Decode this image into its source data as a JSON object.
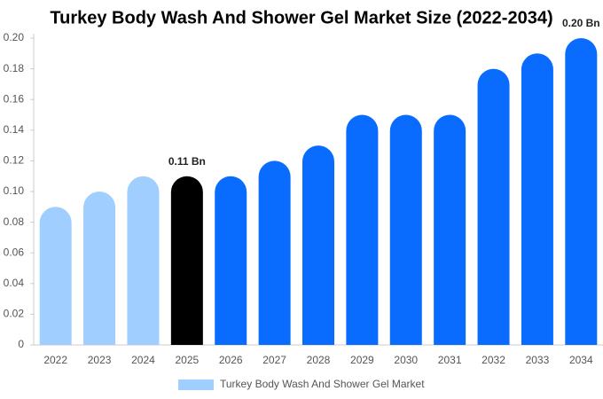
{
  "chart_data": {
    "type": "bar",
    "title": "Turkey Body Wash And Shower Gel Market Size (2022-2034)",
    "categories": [
      "2022",
      "2023",
      "2024",
      "2025",
      "2026",
      "2027",
      "2028",
      "2029",
      "2030",
      "2031",
      "2032",
      "2033",
      "2034"
    ],
    "series": [
      {
        "name": "Turkey Body Wash And Shower Gel Market",
        "color": "#a0cfff",
        "colors": [
          "#a0cfff",
          "#a0cfff",
          "#a0cfff",
          "#000000",
          "#0a6cff",
          "#0a6cff",
          "#0a6cff",
          "#0a6cff",
          "#0a6cff",
          "#0a6cff",
          "#0a6cff",
          "#0a6cff",
          "#0a6cff"
        ],
        "values": [
          0.09,
          0.1,
          0.11,
          0.11,
          0.11,
          0.12,
          0.13,
          0.15,
          0.15,
          0.15,
          0.18,
          0.19,
          0.2
        ],
        "value_labels": [
          null,
          null,
          null,
          "0.11 Bn",
          null,
          null,
          null,
          null,
          null,
          null,
          null,
          null,
          "0.20 Bn"
        ]
      }
    ],
    "ylim": [
      0,
      0.2
    ],
    "yticks": [
      0,
      0.02,
      0.04,
      0.06,
      0.08,
      {
        "value": 0.1,
        "label": "0.10"
      },
      0.12,
      0.14,
      0.16,
      0.18,
      {
        "value": 0.2,
        "label": "0.20"
      }
    ]
  }
}
